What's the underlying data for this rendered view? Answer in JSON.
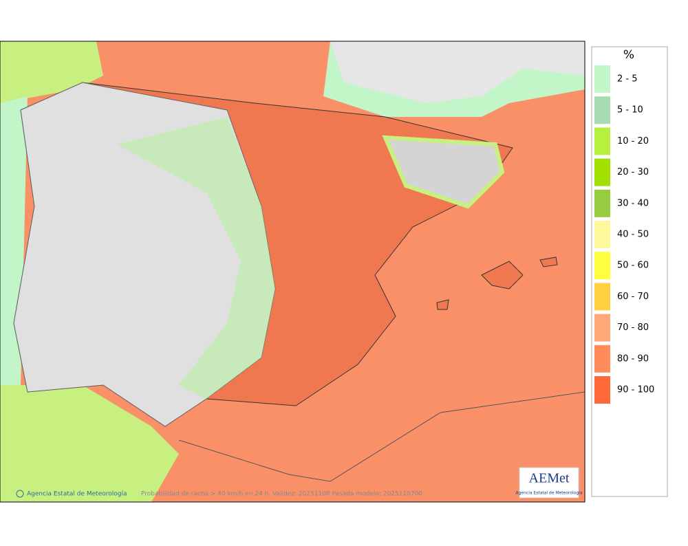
{
  "map": {
    "credit": "Agencia Estatal de Meteorología",
    "caption": "Probabilidad de racha > 40 km/h en 24 h. Validez: 20251108 Pasada modelo: 2025110700",
    "logo": {
      "text": "AEMet",
      "subtitle": "Agencia Estatal de Meteorología"
    }
  },
  "legend": {
    "title": "%",
    "items": [
      {
        "label": "2 - 5",
        "color": "#c2f5c8"
      },
      {
        "label": "5 - 10",
        "color": "#a8dcb0"
      },
      {
        "label": "10 - 20",
        "color": "#b8f040"
      },
      {
        "label": "20 - 30",
        "color": "#a2e000"
      },
      {
        "label": "30 - 40",
        "color": "#98cc40"
      },
      {
        "label": "40 - 50",
        "color": "#fff89a"
      },
      {
        "label": "50 - 60",
        "color": "#ffff40"
      },
      {
        "label": "60 - 70",
        "color": "#ffd040"
      },
      {
        "label": "70 - 80",
        "color": "#ffa878"
      },
      {
        "label": "80 - 90",
        "color": "#ff8c5a"
      },
      {
        "label": "90 - 100",
        "color": "#ff6838"
      }
    ]
  }
}
